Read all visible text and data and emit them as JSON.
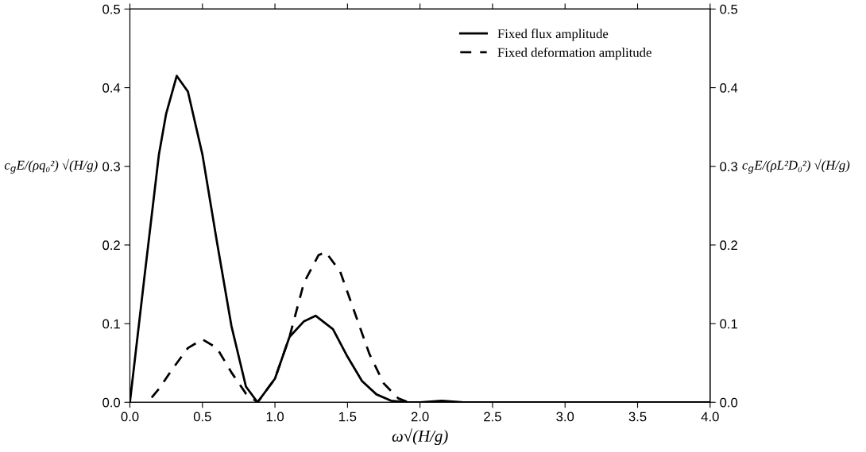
{
  "chart_data": {
    "type": "line",
    "xlabel": "ω√(H/g)",
    "ylabel": "c$_{g}$E/(ρq₀²) √(H/g)",
    "y2label": "c$_{g}$E/(ρL²D₀²) √(H/g)",
    "series": [
      {
        "name": "Fixed flux amplitude",
        "color": "#000000",
        "line_style": "solid",
        "x": [
          0,
          0.1,
          0.2,
          0.25,
          0.323,
          0.4,
          0.5,
          0.6,
          0.7,
          0.8,
          0.88,
          1.0,
          1.1,
          1.2,
          1.28,
          1.4,
          1.5,
          1.6,
          1.7,
          1.8,
          1.9,
          2.0,
          2.15,
          2.3,
          4.0
        ],
        "values": [
          0,
          0.159,
          0.315,
          0.367,
          0.415,
          0.395,
          0.315,
          0.204,
          0.097,
          0.02,
          0,
          0.03,
          0.083,
          0.103,
          0.11,
          0.093,
          0.058,
          0.027,
          0.01,
          0.002,
          0,
          0,
          0.002,
          0,
          0
        ]
      },
      {
        "name": "Fixed deformation amplitude",
        "color": "#000000",
        "line_style": "dashed",
        "x": [
          0.15,
          0.2,
          0.3,
          0.4,
          0.5,
          0.6,
          0.7,
          0.8,
          0.88,
          1.0,
          1.1,
          1.2,
          1.3,
          1.35,
          1.45,
          1.55,
          1.65,
          1.75,
          1.85,
          1.92
        ],
        "values": [
          0.006,
          0.017,
          0.044,
          0.069,
          0.08,
          0.069,
          0.038,
          0.011,
          0,
          0.03,
          0.083,
          0.152,
          0.187,
          0.191,
          0.166,
          0.114,
          0.062,
          0.024,
          0.005,
          0
        ]
      }
    ],
    "xlim": [
      0,
      4
    ],
    "xticks": [
      {
        "value": 0,
        "label": "0.0"
      },
      0.5,
      {
        "value": 1,
        "label": "1.0"
      },
      1.5,
      {
        "value": 2,
        "label": "2.0"
      },
      2.5,
      {
        "value": 3,
        "label": "3.0"
      },
      3.5,
      {
        "value": 4,
        "label": "4.0"
      }
    ],
    "ylim": [
      0,
      0.5
    ],
    "yticks": [
      {
        "value": 0,
        "label": "0.0"
      },
      0.1,
      0.2,
      0.3,
      0.4,
      0.5
    ],
    "y2lim": [
      0,
      0.5
    ],
    "y2ticks": [
      {
        "value": 0,
        "label": "0.0"
      },
      0.1,
      0.2,
      0.3,
      0.4,
      0.5
    ],
    "legend": "top right",
    "grid": false,
    "marker": "none"
  }
}
